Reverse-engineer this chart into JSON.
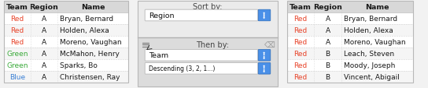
{
  "left_table": {
    "headers": [
      "Team",
      "Region",
      "Name"
    ],
    "rows": [
      [
        "Red",
        "A",
        "Bryan, Bernard"
      ],
      [
        "Red",
        "A",
        "Holden, Alexa"
      ],
      [
        "Red",
        "A",
        "Moreno, Vaughan"
      ],
      [
        "Green",
        "A",
        "McMahon, Henry"
      ],
      [
        "Green",
        "A",
        "Sparks, Bo"
      ],
      [
        "Blue",
        "A",
        "Christensen, Ray"
      ]
    ],
    "team_colors": [
      "#e8442a",
      "#e8442a",
      "#e8442a",
      "#3aaa3a",
      "#3aaa3a",
      "#3a7fd4"
    ]
  },
  "right_table": {
    "headers": [
      "Team",
      "Region",
      "Name"
    ],
    "rows": [
      [
        "Red",
        "A",
        "Bryan, Bernard"
      ],
      [
        "Red",
        "A",
        "Holden, Alexa"
      ],
      [
        "Red",
        "A",
        "Moreno, Vaughan"
      ],
      [
        "Red",
        "B",
        "Leach, Steven"
      ],
      [
        "Red",
        "B",
        "Moody, Joseph"
      ],
      [
        "Red",
        "B",
        "Vincent, Abigail"
      ]
    ],
    "team_colors": [
      "#e8442a",
      "#e8442a",
      "#e8442a",
      "#e8442a",
      "#e8442a",
      "#e8442a"
    ]
  },
  "middle": {
    "sort_by_label": "Sort by:",
    "sort_by_value": "Region",
    "then_by_label": "Then by:",
    "then_by_value": "Team",
    "order_value": "Descending (3, 2, 1...)",
    "blue_btn": "#4a90e8",
    "blue_btn_dark": "#2a6ab8"
  },
  "header_bg": "#d8d8d8",
  "row_bg_even": "#ffffff",
  "row_bg_odd": "#f5f5f5",
  "text_color": "#1a1a1a",
  "header_fontsize": 6.8,
  "cell_fontsize": 6.5,
  "middle_top_bg": "#ebebeb",
  "middle_bot_bg": "#dcdcdc",
  "separator_color": "#b0b0b0",
  "border_color": "#b8b8b8"
}
